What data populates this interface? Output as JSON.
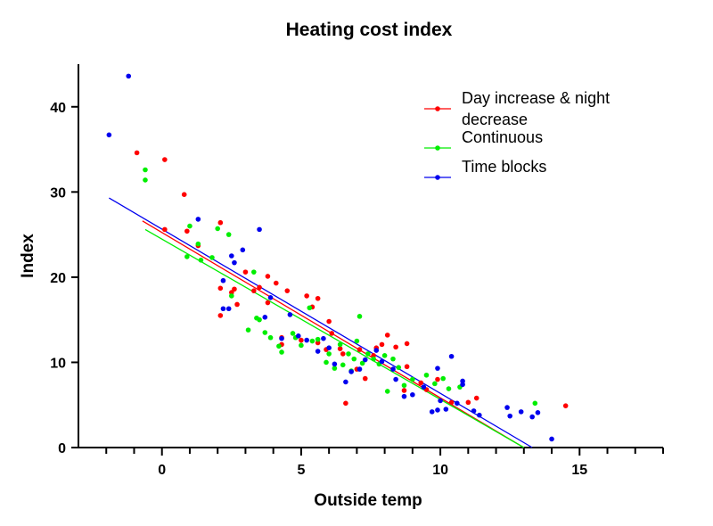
{
  "chart_data": {
    "type": "scatter",
    "title": "Heating cost index",
    "xlabel": "Outside temp",
    "ylabel": "Index",
    "xlim": [
      -3,
      18
    ],
    "ylim": [
      0,
      45
    ],
    "x_ticks": [
      0,
      5,
      10,
      15
    ],
    "x_minor_ticks": [
      -2,
      -1,
      1,
      2,
      3,
      4,
      6,
      7,
      8,
      9,
      11,
      12,
      13,
      14,
      16,
      17,
      18
    ],
    "y_ticks": [
      0,
      10,
      20,
      30,
      40
    ],
    "legend_position": "top-right",
    "grid": false,
    "series": [
      {
        "name": "Day increase & night decrease",
        "name_lines": [
          "Day increase & night",
          "decrease"
        ],
        "color": "#ff0000",
        "points": [
          [
            -0.9,
            34.6
          ],
          [
            0.1,
            33.8
          ],
          [
            0.1,
            25.6
          ],
          [
            0.8,
            29.7
          ],
          [
            0.9,
            25.4
          ],
          [
            1.3,
            23.7
          ],
          [
            2.1,
            26.4
          ],
          [
            2.1,
            18.7
          ],
          [
            2.1,
            15.5
          ],
          [
            2.5,
            18.2
          ],
          [
            2.6,
            18.6
          ],
          [
            2.7,
            16.8
          ],
          [
            3.3,
            18.4
          ],
          [
            3.5,
            18.8
          ],
          [
            3.8,
            20.1
          ],
          [
            3.8,
            17.0
          ],
          [
            4.1,
            19.3
          ],
          [
            4.5,
            18.4
          ],
          [
            4.3,
            12.1
          ],
          [
            4.3,
            12.9
          ],
          [
            5.2,
            17.8
          ],
          [
            5.4,
            16.5
          ],
          [
            5.6,
            17.5
          ],
          [
            5.6,
            12.3
          ],
          [
            5.9,
            11.5
          ],
          [
            6.0,
            14.8
          ],
          [
            6.1,
            13.4
          ],
          [
            6.4,
            11.6
          ],
          [
            6.5,
            11.0
          ],
          [
            6.6,
            5.2
          ],
          [
            7.0,
            9.2
          ],
          [
            7.1,
            11.5
          ],
          [
            7.3,
            8.1
          ],
          [
            7.6,
            10.8
          ],
          [
            7.7,
            11.7
          ],
          [
            7.9,
            12.1
          ],
          [
            8.1,
            13.2
          ],
          [
            8.4,
            11.8
          ],
          [
            8.8,
            12.2
          ],
          [
            8.8,
            9.5
          ],
          [
            8.7,
            6.7
          ],
          [
            9.3,
            7.6
          ],
          [
            9.5,
            6.8
          ],
          [
            9.9,
            8.0
          ],
          [
            10.4,
            5.3
          ],
          [
            11.0,
            5.3
          ],
          [
            11.3,
            5.8
          ],
          [
            14.5,
            4.9
          ],
          [
            5.0,
            12.6
          ],
          [
            3.0,
            20.6
          ]
        ]
      },
      {
        "name": "Continuous",
        "color": "#00ee00",
        "points": [
          [
            -0.6,
            32.6
          ],
          [
            -0.6,
            31.4
          ],
          [
            0.9,
            22.4
          ],
          [
            1.0,
            26.0
          ],
          [
            1.3,
            23.9
          ],
          [
            1.4,
            22.0
          ],
          [
            1.8,
            22.3
          ],
          [
            2.0,
            25.7
          ],
          [
            2.4,
            25.0
          ],
          [
            2.5,
            17.8
          ],
          [
            3.1,
            13.8
          ],
          [
            3.3,
            20.6
          ],
          [
            3.4,
            15.2
          ],
          [
            3.5,
            15.0
          ],
          [
            3.7,
            13.5
          ],
          [
            3.9,
            12.9
          ],
          [
            4.2,
            11.9
          ],
          [
            4.3,
            11.2
          ],
          [
            4.8,
            12.9
          ],
          [
            5.0,
            12.0
          ],
          [
            5.3,
            16.4
          ],
          [
            5.4,
            12.5
          ],
          [
            5.6,
            12.7
          ],
          [
            5.9,
            10.0
          ],
          [
            6.0,
            11.0
          ],
          [
            6.2,
            9.3
          ],
          [
            6.4,
            12.1
          ],
          [
            6.5,
            9.7
          ],
          [
            6.8,
            9.0
          ],
          [
            6.9,
            10.4
          ],
          [
            7.0,
            12.5
          ],
          [
            7.1,
            15.4
          ],
          [
            7.2,
            9.9
          ],
          [
            7.4,
            11.0
          ],
          [
            7.6,
            10.4
          ],
          [
            7.8,
            9.8
          ],
          [
            8.0,
            10.8
          ],
          [
            8.1,
            6.6
          ],
          [
            8.3,
            10.4
          ],
          [
            8.5,
            9.4
          ],
          [
            8.7,
            7.3
          ],
          [
            9.0,
            8.0
          ],
          [
            9.5,
            8.5
          ],
          [
            9.8,
            7.5
          ],
          [
            10.1,
            8.1
          ],
          [
            10.3,
            6.9
          ],
          [
            10.7,
            7.1
          ],
          [
            13.4,
            5.2
          ],
          [
            6.7,
            11.0
          ],
          [
            4.7,
            13.4
          ]
        ]
      },
      {
        "name": "Time blocks",
        "color": "#0000ee",
        "points": [
          [
            -1.9,
            36.7
          ],
          [
            -1.2,
            43.6
          ],
          [
            1.3,
            26.8
          ],
          [
            2.2,
            16.3
          ],
          [
            2.4,
            16.3
          ],
          [
            2.5,
            22.5
          ],
          [
            2.6,
            21.7
          ],
          [
            2.9,
            23.2
          ],
          [
            3.5,
            25.6
          ],
          [
            3.7,
            15.3
          ],
          [
            3.9,
            17.6
          ],
          [
            4.3,
            12.8
          ],
          [
            4.6,
            15.6
          ],
          [
            4.9,
            13.1
          ],
          [
            5.2,
            12.6
          ],
          [
            5.6,
            11.3
          ],
          [
            5.8,
            12.8
          ],
          [
            6.0,
            11.7
          ],
          [
            6.2,
            9.8
          ],
          [
            6.6,
            7.7
          ],
          [
            6.8,
            8.9
          ],
          [
            7.1,
            9.2
          ],
          [
            7.3,
            10.3
          ],
          [
            7.7,
            11.4
          ],
          [
            7.9,
            10.1
          ],
          [
            8.3,
            9.2
          ],
          [
            8.4,
            8.0
          ],
          [
            8.7,
            6.0
          ],
          [
            9.0,
            6.2
          ],
          [
            9.4,
            7.1
          ],
          [
            9.7,
            4.2
          ],
          [
            9.9,
            4.4
          ],
          [
            10.0,
            5.5
          ],
          [
            10.2,
            4.5
          ],
          [
            10.4,
            10.7
          ],
          [
            10.6,
            5.2
          ],
          [
            10.8,
            7.4
          ],
          [
            10.8,
            7.8
          ],
          [
            11.2,
            4.3
          ],
          [
            11.4,
            3.8
          ],
          [
            12.4,
            4.7
          ],
          [
            12.5,
            3.7
          ],
          [
            12.9,
            4.2
          ],
          [
            13.3,
            3.6
          ],
          [
            13.5,
            4.1
          ],
          [
            14.0,
            1.0
          ],
          [
            9.9,
            9.3
          ],
          [
            2.2,
            19.6
          ]
        ]
      }
    ],
    "trend_lines": [
      {
        "series": "Day increase & night decrease",
        "color": "#ff0000",
        "from": [
          -0.7,
          26.6
        ],
        "to": [
          13.0,
          0.0
        ]
      },
      {
        "series": "Continuous",
        "color": "#00ee00",
        "from": [
          -0.6,
          25.6
        ],
        "to": [
          13.0,
          0.0
        ]
      },
      {
        "series": "Time blocks",
        "color": "#0000ee",
        "from": [
          -1.9,
          29.3
        ],
        "to": [
          13.3,
          0.0
        ]
      }
    ]
  }
}
